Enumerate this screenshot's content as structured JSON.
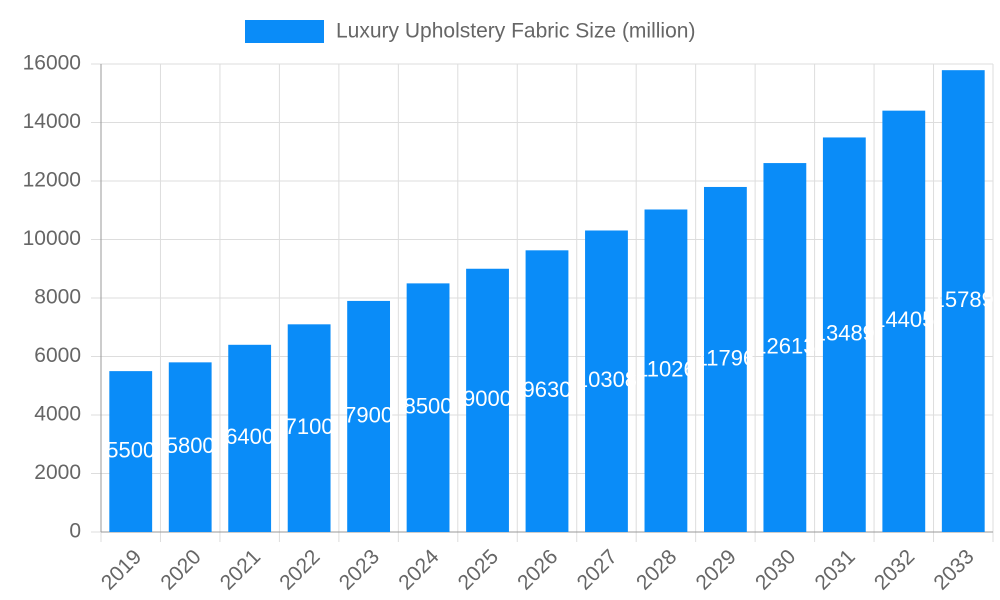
{
  "chart_data": {
    "type": "bar",
    "categories": [
      "2019",
      "2020",
      "2021",
      "2022",
      "2023",
      "2024",
      "2025",
      "2026",
      "2027",
      "2028",
      "2029",
      "2030",
      "2031",
      "2032",
      "2033"
    ],
    "series": [
      {
        "name": "Luxury Upholstery Fabric Size (million)",
        "color": "#0a8cf8",
        "values": [
          5500,
          5800,
          6400,
          7100,
          7900,
          8500,
          9000,
          9630,
          10308,
          11026,
          11796,
          12613,
          13489,
          14405,
          15789
        ]
      }
    ],
    "ylim": [
      0,
      16000
    ],
    "yticks": [
      0,
      2000,
      4000,
      6000,
      8000,
      10000,
      12000,
      14000,
      16000
    ],
    "grid": true
  }
}
